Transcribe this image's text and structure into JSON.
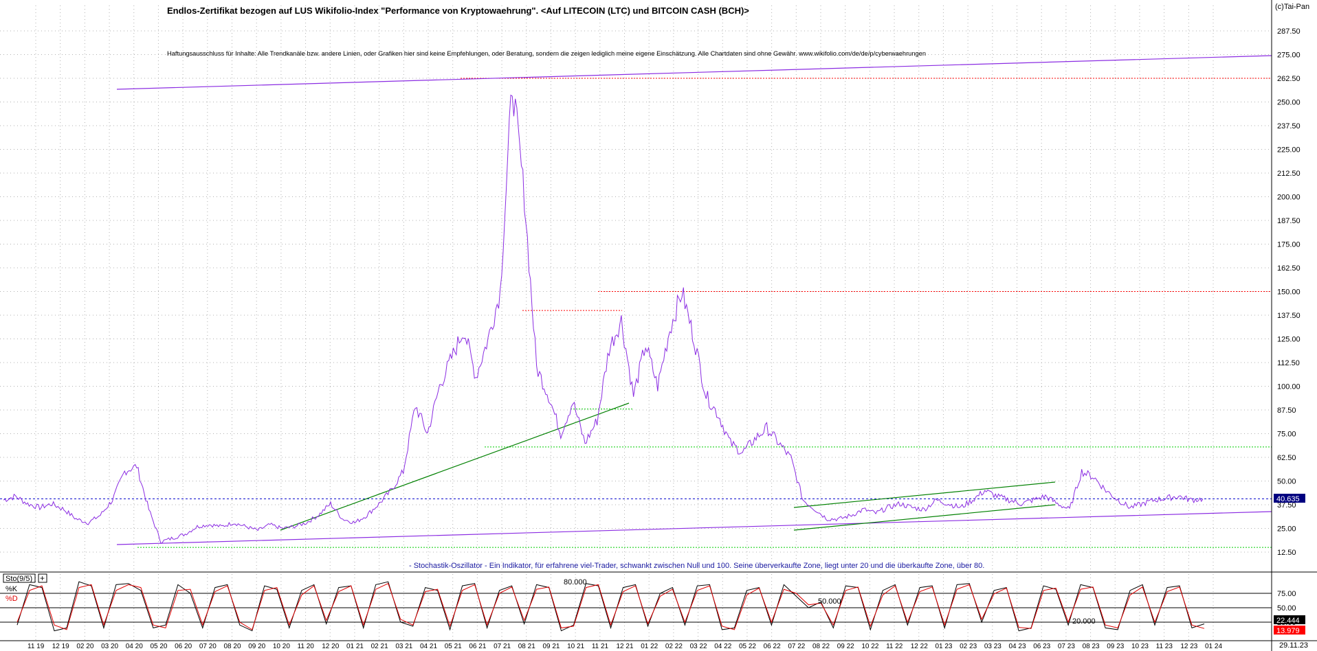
{
  "header": {
    "title": "Endlos-Zertifikat bezogen auf LUS Wikifolio-Index \"Performance von Kryptowaehrung\". <Auf LITECOIN (LTC) und BITCOIN CASH (BCH)>",
    "copyright": "(c)Tai-Pan",
    "disclaimer": "Haftungsausschluss für Inhalte: Alle Trendkanäle bzw. andere Linien, oder Grafiken hier sind keine Empfehlungen, oder Beratung, sondern die zeigen lediglich meine eigene Einschätzung. Alle Chartdaten sind ohne Gewähr. www.wikifolio.com/de/de/p/cyberwaehrungen",
    "stoch_note": "- Stochastik-Oszillator - Ein Indikator, für erfahrene viel-Trader, schwankt zwischen Null und 100. Seine überverkaufte Zone, liegt unter 20 und die überkaufte Zone, über 80.",
    "last_date": "29.11.23"
  },
  "colors": {
    "price": "#8a2be2",
    "trend_purple": "#8a2be2",
    "trend_green": "#008000",
    "level_red": "#ff0000",
    "level_green": "#00cc00",
    "last_price_line": "#0000cc",
    "last_price_label_bg": "#000080",
    "stoch_k": "#000000",
    "stoch_d": "#e00000",
    "grid": "#b0b0b0"
  },
  "chart_data": [
    {
      "type": "line",
      "title": "Endlos-Zertifikat bezogen auf LUS Wikifolio-Index \"Performance von Kryptowaehrung\". <Auf LITECOIN (LTC) und BITCOIN CASH (BCH)>",
      "xlabel": "",
      "ylabel": "",
      "ylim": [
        0,
        300
      ],
      "y_ticks": [
        "12.50",
        "25.00",
        "37.50",
        "50.00",
        "62.50",
        "75.00",
        "87.50",
        "100.00",
        "112.50",
        "125.00",
        "137.50",
        "150.00",
        "162.50",
        "175.00",
        "187.50",
        "200.00",
        "212.50",
        "225.00",
        "237.50",
        "250.00",
        "262.50",
        "275.00",
        "287.50"
      ],
      "x_ticks": [
        "11 19",
        "12 19",
        "02 20",
        "03 20",
        "04 20",
        "05 20",
        "06 20",
        "07 20",
        "08 20",
        "09 20",
        "10 20",
        "11 20",
        "12 20",
        "01 21",
        "02 21",
        "03 21",
        "04 21",
        "05 21",
        "06 21",
        "07 21",
        "08 21",
        "09 21",
        "10 21",
        "11 21",
        "12 21",
        "01 22",
        "02 22",
        "03 22",
        "04 22",
        "05 22",
        "06 22",
        "07 22",
        "08 22",
        "09 22",
        "10 22",
        "11 22",
        "12 22",
        "01 23",
        "02 23",
        "03 23",
        "04 23",
        "06 23",
        "07 23",
        "08 23",
        "09 23",
        "10 23",
        "11 23",
        "12 23",
        "01 24"
      ],
      "grid": true,
      "last_value_label": "40.635",
      "series": [
        {
          "values": [
            40,
            42,
            38,
            36,
            38,
            35,
            30,
            28,
            32,
            40,
            55,
            58,
            35,
            18,
            20,
            22,
            26,
            27,
            26,
            28,
            26,
            24,
            27,
            25,
            26,
            28,
            32,
            38,
            30,
            28,
            32,
            38,
            45,
            55,
            90,
            75,
            100,
            115,
            130,
            105,
            125,
            150,
            260,
            200,
            110,
            95,
            75,
            92,
            70,
            82,
            120,
            135,
            95,
            122,
            100,
            130,
            150,
            125,
            95,
            85,
            70,
            65,
            72,
            78,
            70,
            62,
            40,
            35,
            30,
            30,
            32,
            35,
            33,
            36,
            38,
            36,
            35,
            40,
            38,
            36,
            40,
            45,
            42,
            40,
            38,
            40,
            42,
            38,
            35,
            55,
            52,
            45,
            40,
            36,
            38,
            40,
            41,
            42,
            40,
            40.6
          ]
        }
      ],
      "levels": [
        262.5,
        150,
        140,
        88,
        68,
        15
      ],
      "last_value": 40.635
    },
    {
      "type": "line",
      "title": "Sto(9/5)",
      "ylim": [
        0,
        100
      ],
      "y_ticks": [
        "25.00",
        "50.00",
        "75.00"
      ],
      "last_k_label": "22.444",
      "last_d_label": "13.979",
      "zone_labels": [
        "80.000",
        "50.000",
        "20.000"
      ],
      "legend": [
        "%K",
        "%D"
      ],
      "series": [
        {
          "name": "%K",
          "values": [
            20,
            90,
            85,
            10,
            15,
            95,
            88,
            15,
            90,
            92,
            80,
            15,
            20,
            90,
            75,
            15,
            85,
            90,
            20,
            10,
            88,
            82,
            15,
            80,
            90,
            22,
            85,
            88,
            15,
            90,
            95,
            25,
            18,
            85,
            80,
            12,
            88,
            92,
            15,
            80,
            88,
            22,
            90,
            85,
            10,
            20,
            92,
            88,
            15,
            85,
            90,
            18,
            75,
            85,
            20,
            88,
            90,
            12,
            15,
            80,
            85,
            20,
            90,
            70,
            50,
            60,
            15,
            88,
            85,
            12,
            80,
            90,
            20,
            85,
            88,
            15,
            90,
            92,
            25,
            80,
            85,
            10,
            15,
            88,
            82,
            20,
            90,
            85,
            15,
            12,
            80,
            90,
            20,
            85,
            88,
            15,
            22
          ]
        },
        {
          "name": "%D",
          "values": [
            25,
            80,
            88,
            20,
            12,
            85,
            90,
            20,
            80,
            90,
            85,
            20,
            15,
            80,
            82,
            20,
            78,
            88,
            25,
            12,
            80,
            85,
            20,
            72,
            88,
            28,
            78,
            88,
            20,
            82,
            92,
            30,
            20,
            78,
            82,
            18,
            80,
            90,
            20,
            75,
            86,
            28,
            82,
            86,
            15,
            18,
            85,
            90,
            20,
            78,
            88,
            22,
            70,
            82,
            25,
            80,
            88,
            18,
            12,
            72,
            84,
            25,
            82,
            75,
            55,
            58,
            20,
            80,
            86,
            18,
            72,
            88,
            25,
            78,
            86,
            20,
            82,
            90,
            30,
            74,
            84,
            16,
            14,
            80,
            84,
            25,
            82,
            86,
            20,
            15,
            72,
            86,
            25,
            78,
            86,
            20,
            14
          ]
        }
      ]
    }
  ]
}
